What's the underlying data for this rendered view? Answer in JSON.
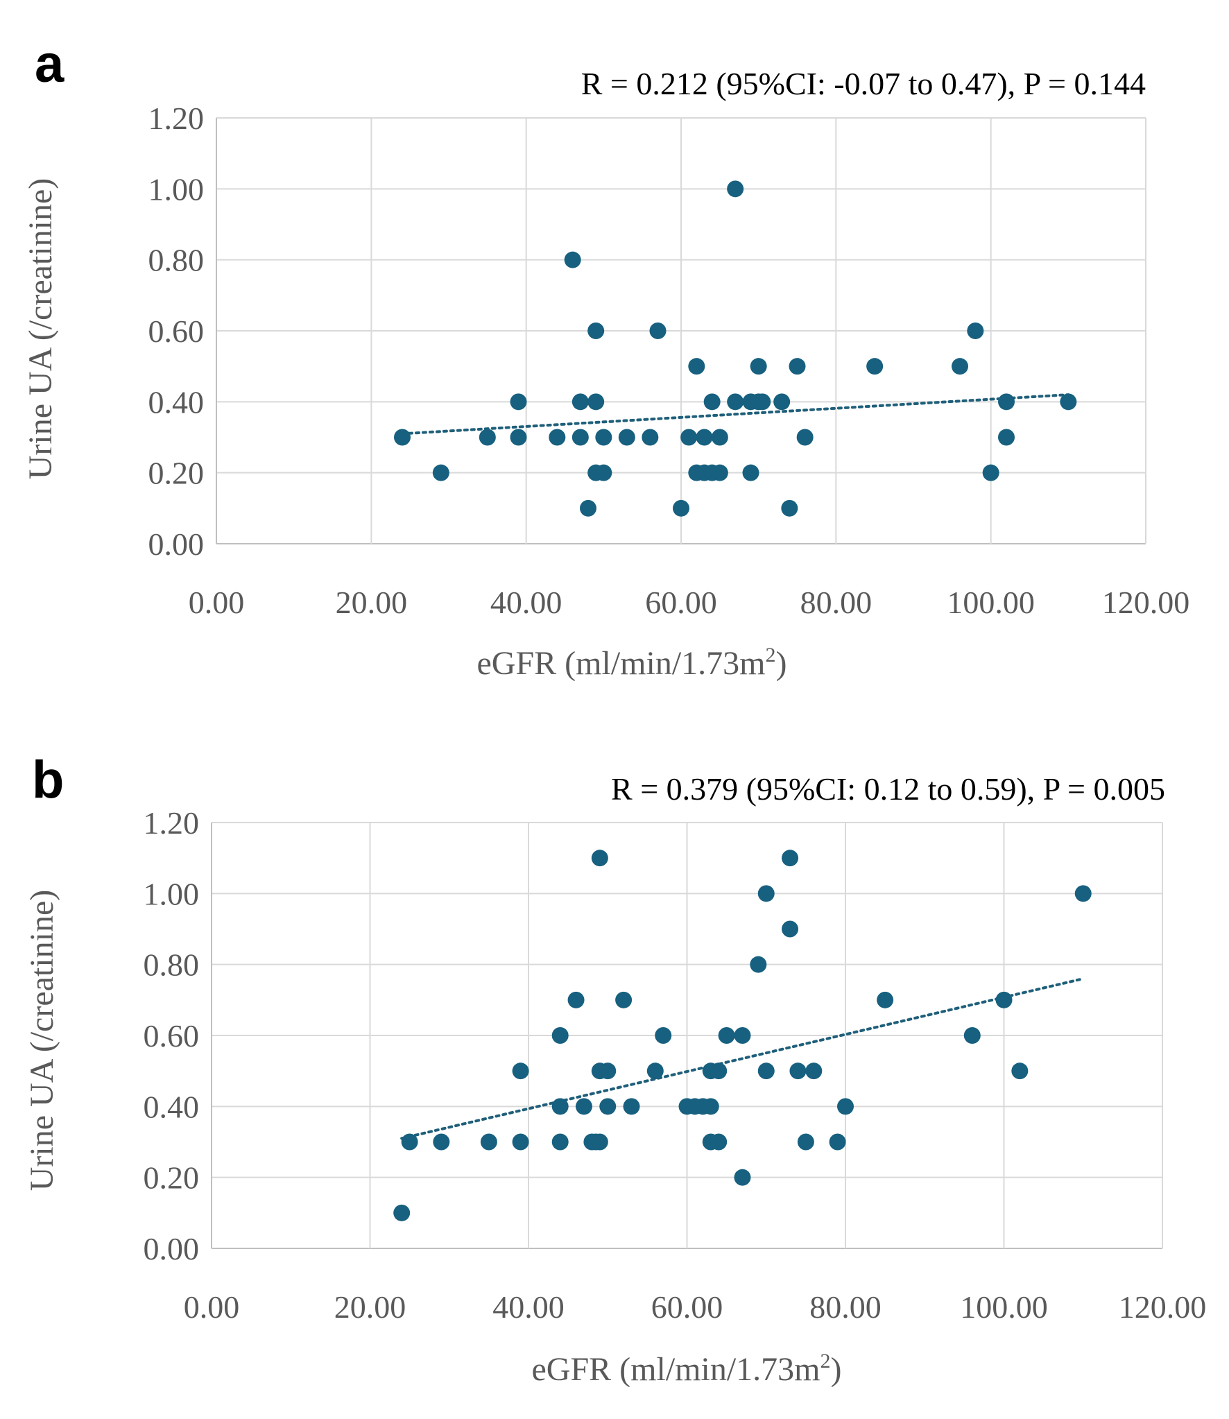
{
  "colors": {
    "marker": "#17607f",
    "trend": "#1f5f7a",
    "grid": "#d9d9d9",
    "text": "#595959"
  },
  "chart_data": [
    {
      "type": "scatter",
      "panel_label": "a",
      "stat_text": "R = 0.212 (95%CI: -0.07 to 0.47), P = 0.144",
      "xlabel": "eGFR (ml/min/1.73m",
      "xlabel_sup": "2",
      "xlabel_end": ")",
      "ylabel": "Urine UA (/creatinine)",
      "xlim": [
        0,
        120
      ],
      "ylim": [
        0,
        1.2
      ],
      "x_ticks": [
        "0.00",
        "20.00",
        "40.00",
        "60.00",
        "80.00",
        "100.00",
        "120.00"
      ],
      "y_ticks": [
        "0.00",
        "0.20",
        "0.40",
        "0.60",
        "0.80",
        "1.00",
        "1.20"
      ],
      "grid": true,
      "trendline": {
        "style": "dotted",
        "x": [
          24,
          110
        ],
        "y": [
          0.31,
          0.42
        ]
      },
      "points": [
        [
          24,
          0.3
        ],
        [
          29,
          0.2
        ],
        [
          35,
          0.3
        ],
        [
          39,
          0.4
        ],
        [
          39,
          0.3
        ],
        [
          44,
          0.3
        ],
        [
          46,
          0.8
        ],
        [
          47,
          0.4
        ],
        [
          47,
          0.3
        ],
        [
          48,
          0.1
        ],
        [
          49,
          0.6
        ],
        [
          49,
          0.4
        ],
        [
          49,
          0.2
        ],
        [
          50,
          0.2
        ],
        [
          50,
          0.3
        ],
        [
          53,
          0.3
        ],
        [
          56,
          0.3
        ],
        [
          57,
          0.6
        ],
        [
          60,
          0.1
        ],
        [
          61,
          0.3
        ],
        [
          62,
          0.5
        ],
        [
          62,
          0.2
        ],
        [
          63,
          0.2
        ],
        [
          63,
          0.3
        ],
        [
          64,
          0.4
        ],
        [
          64,
          0.2
        ],
        [
          65,
          0.2
        ],
        [
          65,
          0.3
        ],
        [
          67,
          1.0
        ],
        [
          67,
          0.4
        ],
        [
          69,
          0.4
        ],
        [
          69,
          0.2
        ],
        [
          70,
          0.5
        ],
        [
          70,
          0.4
        ],
        [
          70.5,
          0.4
        ],
        [
          73,
          0.4
        ],
        [
          74,
          0.1
        ],
        [
          75,
          0.5
        ],
        [
          76,
          0.3
        ],
        [
          85,
          0.5
        ],
        [
          96,
          0.5
        ],
        [
          98,
          0.6
        ],
        [
          100,
          0.2
        ],
        [
          102,
          0.4
        ],
        [
          102,
          0.3
        ],
        [
          110,
          0.4
        ]
      ]
    },
    {
      "type": "scatter",
      "panel_label": "b",
      "stat_text": "R = 0.379 (95%CI: 0.12 to 0.59), P = 0.005",
      "xlabel": "eGFR (ml/min/1.73m",
      "xlabel_sup": "2",
      "xlabel_end": ")",
      "ylabel": "Urine UA (/creatinine)",
      "xlim": [
        0,
        120
      ],
      "ylim": [
        0,
        1.2
      ],
      "x_ticks": [
        "0.00",
        "20.00",
        "40.00",
        "60.00",
        "80.00",
        "100.00",
        "120.00"
      ],
      "y_ticks": [
        "0.00",
        "0.20",
        "0.40",
        "0.60",
        "0.80",
        "1.00",
        "1.20"
      ],
      "grid": true,
      "trendline": {
        "style": "dotted",
        "x": [
          24,
          110
        ],
        "y": [
          0.31,
          0.76
        ]
      },
      "points": [
        [
          24,
          0.1
        ],
        [
          25,
          0.3
        ],
        [
          29,
          0.3
        ],
        [
          35,
          0.3
        ],
        [
          39,
          0.5
        ],
        [
          39,
          0.3
        ],
        [
          44,
          0.6
        ],
        [
          44,
          0.4
        ],
        [
          44,
          0.3
        ],
        [
          46,
          0.7
        ],
        [
          47,
          0.4
        ],
        [
          48,
          0.3
        ],
        [
          49,
          1.1
        ],
        [
          49,
          0.5
        ],
        [
          49,
          0.3
        ],
        [
          48.5,
          0.3
        ],
        [
          50,
          0.5
        ],
        [
          50,
          0.4
        ],
        [
          52,
          0.7
        ],
        [
          53,
          0.4
        ],
        [
          56,
          0.5
        ],
        [
          57,
          0.6
        ],
        [
          60,
          0.4
        ],
        [
          61,
          0.4
        ],
        [
          62,
          0.4
        ],
        [
          63,
          0.4
        ],
        [
          63,
          0.5
        ],
        [
          63,
          0.3
        ],
        [
          64,
          0.5
        ],
        [
          64,
          0.3
        ],
        [
          65,
          0.6
        ],
        [
          67,
          0.6
        ],
        [
          67,
          0.2
        ],
        [
          69,
          0.8
        ],
        [
          70,
          1.0
        ],
        [
          70,
          0.5
        ],
        [
          73,
          1.1
        ],
        [
          73,
          0.9
        ],
        [
          74,
          0.5
        ],
        [
          75,
          0.3
        ],
        [
          76,
          0.5
        ],
        [
          79,
          0.3
        ],
        [
          80,
          0.4
        ],
        [
          85,
          0.7
        ],
        [
          96,
          0.6
        ],
        [
          100,
          0.7
        ],
        [
          102,
          0.5
        ],
        [
          110,
          1.0
        ]
      ]
    }
  ]
}
